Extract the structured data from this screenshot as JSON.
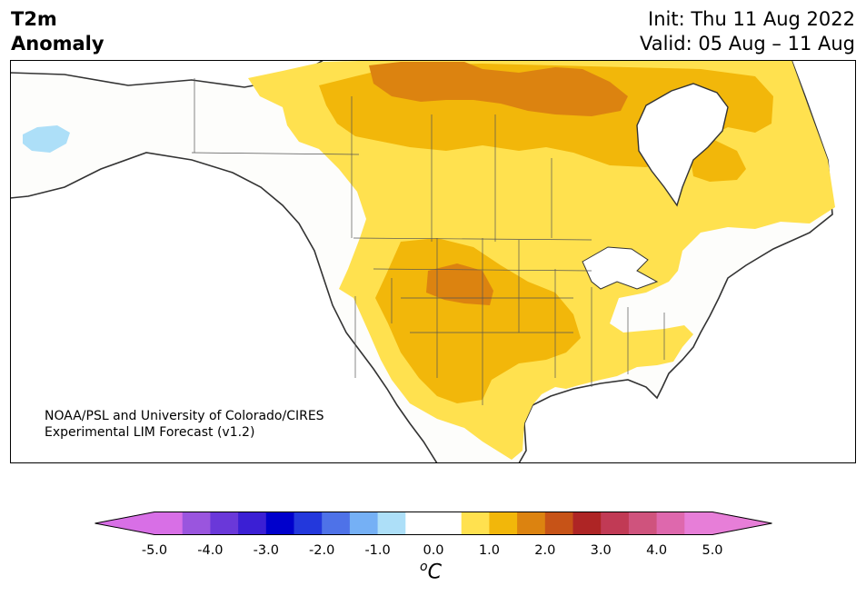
{
  "title": {
    "left_line1": "T2m",
    "left_line2": "Anomaly",
    "init": "Init: Thu 11 Aug 2022",
    "valid": "Valid: 05 Aug – 11 Aug"
  },
  "credit": {
    "line1": "NOAA/PSL and University of Colorado/CIRES",
    "line2": "Experimental LIM Forecast (v1.2)"
  },
  "colorbar": {
    "unit_letter": "C",
    "unit_super": "o",
    "tick_labels": [
      "-5.0",
      "-4.0",
      "-3.0",
      "-2.0",
      "-1.0",
      "0.0",
      "1.0",
      "2.0",
      "3.0",
      "4.0",
      "5.0"
    ],
    "under_color": "#d86fe6",
    "over_color": "#e77ed8",
    "colors": [
      "#d86fe6",
      "#9a55de",
      "#6a38d9",
      "#3b1fd4",
      "#0000cc",
      "#2338dc",
      "#4e72e8",
      "#75b0f5",
      "#addff8",
      "#ffffff",
      "#ffffff",
      "#ffe14f",
      "#f2b70a",
      "#dc8310",
      "#c75317",
      "#ae2525",
      "#c13a55",
      "#cf537d",
      "#de68ad",
      "#e77ed8"
    ]
  },
  "map": {
    "region": "North America",
    "field": "2m temperature anomaly",
    "colors": {
      "ocean": "#ffffff",
      "anom_0_5": "#ffe14f",
      "anom_1_0": "#f2b70a",
      "anom_1_5": "#dc8310",
      "cold": "#addff8",
      "coast": "#333333"
    }
  }
}
